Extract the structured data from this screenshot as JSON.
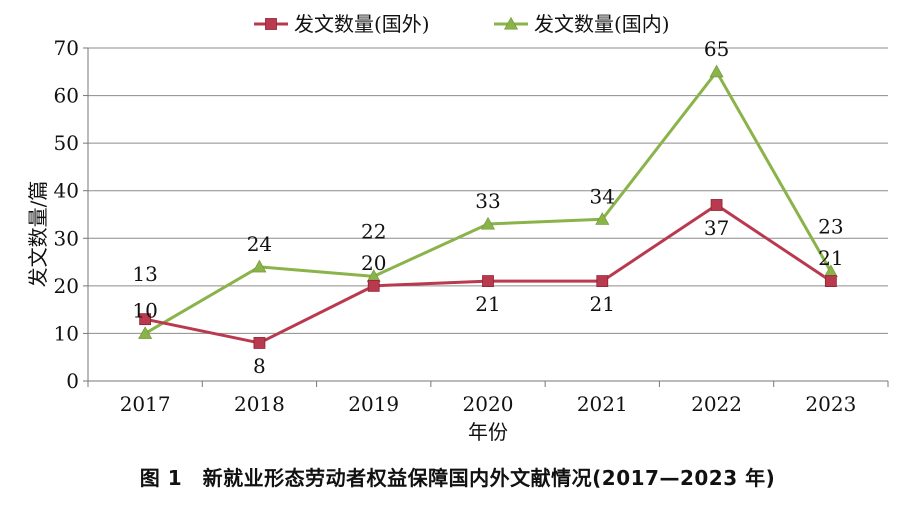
{
  "caption": "图 1　新就业形态劳动者权益保障国内外文献情况(2017—2023 年)",
  "chart_data": {
    "type": "line",
    "categories": [
      "2017",
      "2018",
      "2019",
      "2020",
      "2021",
      "2022",
      "2023"
    ],
    "series": [
      {
        "name": "发文数量(国外)",
        "values": [
          13,
          8,
          20,
          21,
          21,
          37,
          21
        ],
        "color": "#b93a4e",
        "marker": "square"
      },
      {
        "name": "发文数量(国内)",
        "values": [
          10,
          24,
          22,
          33,
          34,
          65,
          23
        ],
        "color": "#8ab34a",
        "marker": "triangle"
      }
    ],
    "xlabel": "年份",
    "ylabel": "发文数量/篇",
    "ylim": [
      0,
      70
    ],
    "yticks": [
      "0",
      "10",
      "20",
      "30",
      "40",
      "50",
      "60",
      "70"
    ],
    "grid": true,
    "legend": "top-center",
    "data_labels": true
  }
}
